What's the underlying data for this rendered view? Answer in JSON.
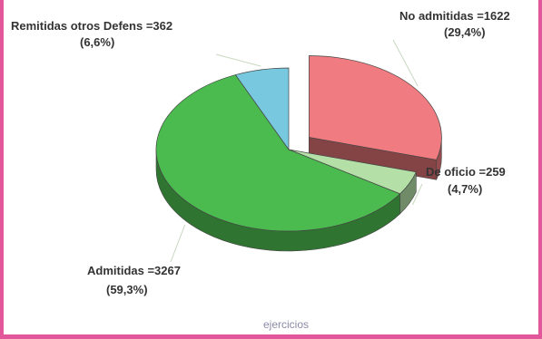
{
  "chart_data": {
    "type": "pie",
    "title": "",
    "xlabel": "ejercicios",
    "slices": [
      {
        "label": "No admitidas",
        "value": 1622,
        "value_text": "No admitidas  =1622",
        "percent_text": "(29,4%)",
        "color": "#f07b80",
        "exploded": true
      },
      {
        "label": "De oficio",
        "value": 259,
        "value_text": "De oficio  =259",
        "percent_text": "(4,7%)",
        "color": "#b4e0a8",
        "exploded": false
      },
      {
        "label": "Admitidas",
        "value": 3267,
        "value_text": "Admitidas  =3267",
        "percent_text": "(59,3%)",
        "color": "#4bbb4f",
        "exploded": false
      },
      {
        "label": "Remitidas otros Defens",
        "value": 362,
        "value_text": "Remitidas otros Defens  =362",
        "percent_text": "(6,6%)",
        "color": "#78c8e0",
        "exploded": false
      }
    ],
    "legend": "none"
  },
  "colors": {
    "frame_border": "#e2569a",
    "label_text": "#333333",
    "xlabel_text": "#8a8aa8"
  }
}
